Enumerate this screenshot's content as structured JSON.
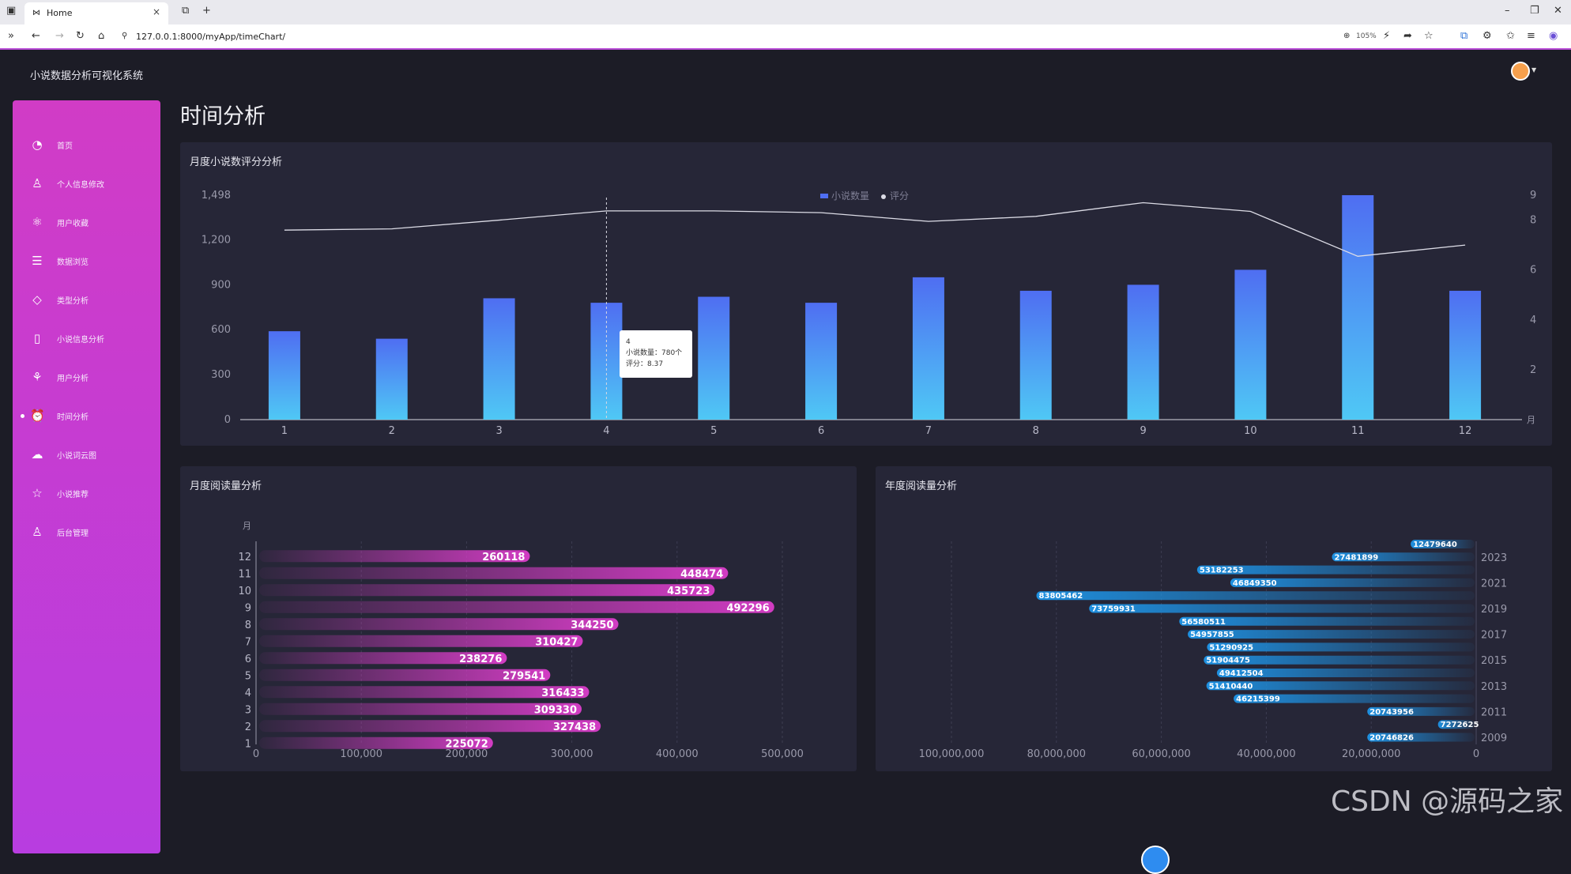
{
  "browser": {
    "tab_title": "Home",
    "url": "127.0.0.1:8000/myApp/timeChart/",
    "zoom": "105%"
  },
  "app": {
    "title": "小说数据分析可视化系统",
    "page_title": "时间分析"
  },
  "sidebar": {
    "items": [
      {
        "label": "首页",
        "icon": "dashboard-icon"
      },
      {
        "label": "个人信息修改",
        "icon": "user-icon"
      },
      {
        "label": "用户收藏",
        "icon": "atom-icon"
      },
      {
        "label": "数据浏览",
        "icon": "list-icon"
      },
      {
        "label": "类型分析",
        "icon": "tag-icon"
      },
      {
        "label": "小说信息分析",
        "icon": "book-icon"
      },
      {
        "label": "用户分析",
        "icon": "runner-icon"
      },
      {
        "label": "时间分析",
        "icon": "alarm-icon"
      },
      {
        "label": "小说词云图",
        "icon": "cloud-upload-icon"
      },
      {
        "label": "小说推荐",
        "icon": "star-icon"
      },
      {
        "label": "后台管理",
        "icon": "admin-user-icon"
      }
    ],
    "active_index": 7
  },
  "panels": {
    "monthly_rating_title": "月度小说数评分分析",
    "monthly_reads_title": "月度阅读量分析",
    "yearly_reads_title": "年度阅读量分析"
  },
  "tooltip": {
    "month": "4",
    "count_line": "小说数量：780个",
    "rating_line": "评分：8.37"
  },
  "watermark": "CSDN @源码之家",
  "chart_data": [
    {
      "id": "monthly-count-rating",
      "type": "bar",
      "title": "月度小说数评分分析",
      "categories": [
        "1",
        "2",
        "3",
        "4",
        "5",
        "6",
        "7",
        "8",
        "9",
        "10",
        "11",
        "12"
      ],
      "series": [
        {
          "name": "小说数量",
          "type": "bar",
          "values": [
            590,
            540,
            810,
            780,
            820,
            780,
            950,
            860,
            900,
            1000,
            1498,
            860
          ]
        },
        {
          "name": "评分",
          "type": "line",
          "axis": "right",
          "values": [
            7.6,
            7.65,
            8.0,
            8.37,
            8.37,
            8.3,
            7.95,
            8.15,
            8.7,
            8.35,
            6.55,
            7.0
          ]
        }
      ],
      "legend": [
        "小说数量",
        "评分"
      ],
      "xlabel": "月",
      "yticks_left": [
        "0",
        "300",
        "600",
        "900",
        "1,200",
        "1,498"
      ],
      "ylim_left": [
        0,
        1498
      ],
      "yticks_right": [
        "2",
        "4",
        "6",
        "8",
        "9"
      ],
      "ylim_right": [
        0,
        9
      ]
    },
    {
      "id": "monthly-reads",
      "type": "bar",
      "orientation": "horizontal",
      "title": "月度阅读量分析",
      "ylabel": "月",
      "categories": [
        "1",
        "2",
        "3",
        "4",
        "5",
        "6",
        "7",
        "8",
        "9",
        "10",
        "11",
        "12"
      ],
      "values": [
        225072,
        327438,
        309330,
        316433,
        279541,
        238276,
        310427,
        344250,
        492296,
        435723,
        448474,
        260118
      ],
      "xticks": [
        "0",
        "100,000",
        "200,000",
        "300,000",
        "400,000",
        "500,000"
      ],
      "xlim": [
        0,
        500000
      ]
    },
    {
      "id": "yearly-reads",
      "type": "bar",
      "orientation": "horizontal-reversed",
      "title": "年度阅读量分析",
      "categories": [
        "2009",
        "2010",
        "2011",
        "2012",
        "2013",
        "2014",
        "2015",
        "2016",
        "2017",
        "2018",
        "2019",
        "2020",
        "2021",
        "2022",
        "2023",
        "2024"
      ],
      "year_tick_labels": [
        "2009",
        "2011",
        "2013",
        "2015",
        "2017",
        "2019",
        "2021",
        "2023"
      ],
      "values": [
        20746826,
        7272625,
        20743956,
        46215399,
        51410440,
        49412504,
        51904475,
        51290925,
        54957855,
        56580511,
        73759931,
        83805462,
        46849350,
        53182253,
        27481899,
        12479640
      ],
      "xticks": [
        "100,000,000",
        "80,000,000",
        "60,000,000",
        "40,000,000",
        "20,000,000",
        "0"
      ],
      "xlim": [
        100000000,
        0
      ]
    }
  ]
}
